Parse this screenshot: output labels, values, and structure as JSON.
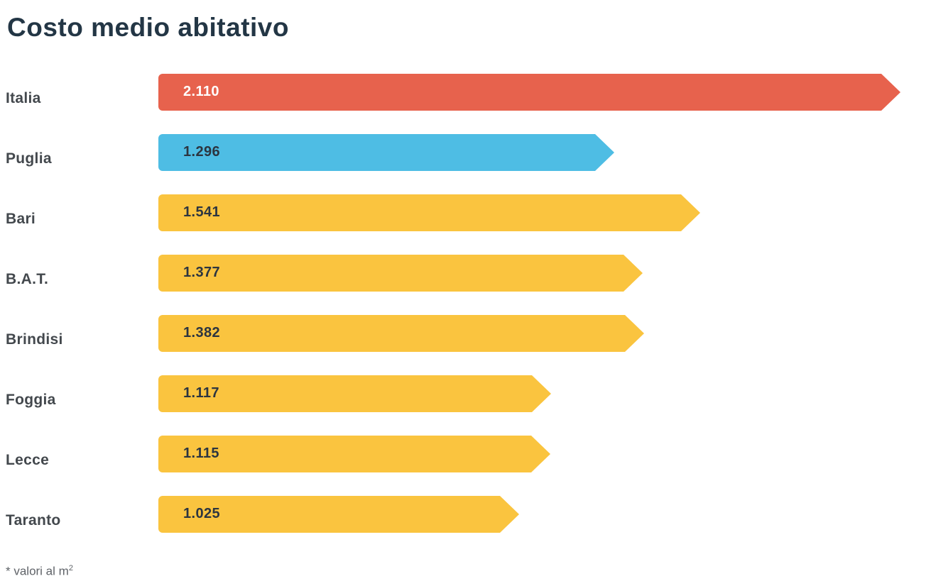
{
  "title": "Costo medio abitativo",
  "footnote": {
    "text": "* valori al m",
    "superscript": "2"
  },
  "chart_data": {
    "type": "bar",
    "orientation": "horizontal",
    "title": "Costo medio abitativo",
    "unit_note": "* valori al m2 (values are price per square metre)",
    "categories": [
      "Italia",
      "Puglia",
      "Bari",
      "B.A.T.",
      "Brindisi",
      "Foggia",
      "Lecce",
      "Taranto"
    ],
    "values": [
      2110,
      1296,
      1541,
      1377,
      1382,
      1117,
      1115,
      1025
    ],
    "value_labels": [
      "2.110",
      "1.296",
      "1.541",
      "1.377",
      "1.382",
      "1.117",
      "1.115",
      "1.025"
    ],
    "bar_colors": [
      "#E7624D",
      "#4EBDE4",
      "#FAC43F",
      "#FAC43F",
      "#FAC43F",
      "#FAC43F",
      "#FAC43F",
      "#FAC43F"
    ],
    "value_text_colors": [
      "#FFFFFF",
      "#2C3540",
      "#2C3540",
      "#2C3540",
      "#2C3540",
      "#2C3540",
      "#2C3540",
      "#2C3540"
    ],
    "xlim": [
      0,
      2110
    ],
    "max_value": 2110,
    "grid": false,
    "legend": false,
    "bar_style": "right-pointing-arrow"
  }
}
